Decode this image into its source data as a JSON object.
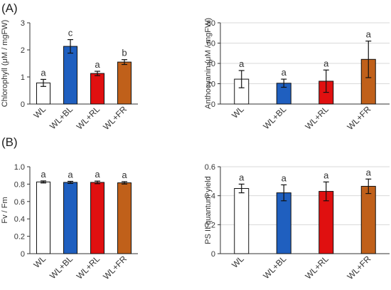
{
  "panel_labels": [
    "(A)",
    "(B)"
  ],
  "chart_data": [
    {
      "type": "bar",
      "panel": "(A)",
      "categories": [
        "WL",
        "WL+BL",
        "WL+RL",
        "WL+FR"
      ],
      "values": [
        0.78,
        2.13,
        1.13,
        1.55
      ],
      "errors": [
        0.13,
        0.25,
        0.08,
        0.09
      ],
      "letters": [
        "a",
        "c",
        "a",
        "b"
      ],
      "ylabel": "Chlorophyll (μM / mgFW)",
      "ylim": [
        0,
        3
      ],
      "yticks": [
        "0",
        "1",
        "2",
        "3"
      ],
      "ytick_values": [
        0,
        1,
        2,
        3
      ],
      "colors": [
        "#ffffff",
        "#1f5fbf",
        "#e01010",
        "#c0601a"
      ],
      "grid": false
    },
    {
      "type": "bar",
      "panel": "(A)",
      "categories": [
        "WL",
        "WL+BL",
        "WL+RL",
        "WL+FR"
      ],
      "values": [
        24.5,
        20.5,
        22.5,
        44
      ],
      "errors": [
        8.5,
        4,
        11,
        18
      ],
      "letters": [
        "a",
        "a",
        "a",
        "a"
      ],
      "ylabel": "Anthocyanin (μM / mgFW)",
      "ylim": [
        0,
        80
      ],
      "yticks": [
        "0",
        "20",
        "40",
        "60",
        "80"
      ],
      "ytick_values": [
        0,
        20,
        40,
        60,
        80
      ],
      "colors": [
        "#ffffff",
        "#1f5fbf",
        "#e01010",
        "#c0601a"
      ],
      "grid": true
    },
    {
      "type": "bar",
      "panel": "(B)",
      "categories": [
        "WL",
        "WL+BL",
        "WL+RL",
        "WL+FR"
      ],
      "values": [
        0.825,
        0.82,
        0.82,
        0.815
      ],
      "errors": [
        0.012,
        0.012,
        0.015,
        0.014
      ],
      "letters": [
        "a",
        "a",
        "a",
        "a"
      ],
      "ylabel": "Fv / Fm",
      "ylim": [
        0,
        1.0
      ],
      "yticks": [
        "0",
        "0.2",
        "0.4",
        "0.6",
        "0.8",
        "1.0"
      ],
      "ytick_values": [
        0,
        0.2,
        0.4,
        0.6,
        0.8,
        1.0
      ],
      "colors": [
        "#ffffff",
        "#1f5fbf",
        "#e01010",
        "#c0601a"
      ],
      "grid": false
    },
    {
      "type": "bar",
      "panel": "(B)",
      "categories": [
        "WL",
        "WL+BL",
        "WL+RL",
        "WL+FR"
      ],
      "values": [
        0.45,
        0.42,
        0.43,
        0.465
      ],
      "errors": [
        0.03,
        0.055,
        0.065,
        0.05
      ],
      "letters": [
        "a",
        "a",
        "a",
        "a"
      ],
      "ylabel": "PS II quantum yield",
      "ylim": [
        0,
        0.6
      ],
      "yticks": [
        "0",
        "0.2",
        "0.4",
        "0.6"
      ],
      "ytick_values": [
        0,
        0.2,
        0.4,
        0.6
      ],
      "colors": [
        "#ffffff",
        "#1f5fbf",
        "#e01010",
        "#c0601a"
      ],
      "grid": true
    }
  ]
}
